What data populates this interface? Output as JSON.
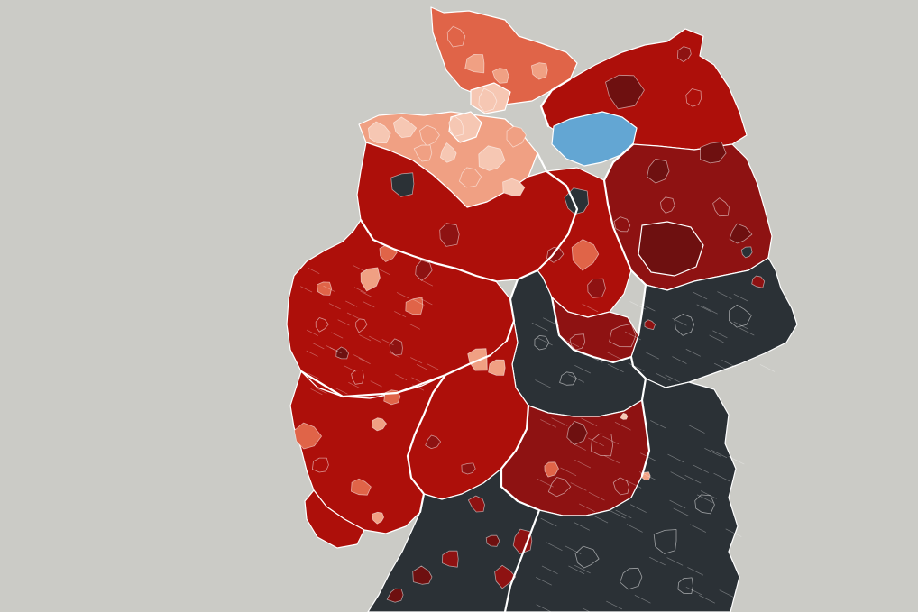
{
  "map": {
    "kind": "choropleth",
    "country": "Germany",
    "legend": null,
    "background_color": "#cbcbc6",
    "border_color": "#ffffff",
    "palette": {
      "very_dark_red": "#6e1010",
      "dark_red": "#8e1212",
      "red": "#ad0f0a",
      "light_red": "#e06448",
      "salmon": "#f0a083",
      "pale": "#f6c7b3",
      "dark_gray": "#2b3136",
      "blue": "#63a6d3"
    },
    "regions": [
      {
        "id": "schleswig-holstein",
        "category": "light_red"
      },
      {
        "id": "hamburg",
        "category": "pale"
      },
      {
        "id": "mecklenburg-vorpommern",
        "category": "red"
      },
      {
        "id": "mecklenburg-lake-district",
        "category": "blue"
      },
      {
        "id": "lower-saxony",
        "category": "red"
      },
      {
        "id": "lower-saxony-north",
        "category": "salmon"
      },
      {
        "id": "bremen",
        "category": "pale"
      },
      {
        "id": "brandenburg",
        "category": "dark_red"
      },
      {
        "id": "berlin-area",
        "category": "very_dark_red"
      },
      {
        "id": "saxony-anhalt",
        "category": "red"
      },
      {
        "id": "saxony-anhalt-south",
        "category": "dark_red"
      },
      {
        "id": "saxony",
        "category": "dark_gray"
      },
      {
        "id": "thuringia",
        "category": "dark_gray"
      },
      {
        "id": "north-rhine-westphalia",
        "category": "red"
      },
      {
        "id": "hesse",
        "category": "red"
      },
      {
        "id": "rhineland-palatinate",
        "category": "red"
      },
      {
        "id": "saarland",
        "category": "red"
      },
      {
        "id": "bavaria",
        "category": "dark_gray"
      },
      {
        "id": "franconia",
        "category": "dark_red"
      },
      {
        "id": "baden-wuerttemberg",
        "category": "dark_gray"
      }
    ]
  }
}
